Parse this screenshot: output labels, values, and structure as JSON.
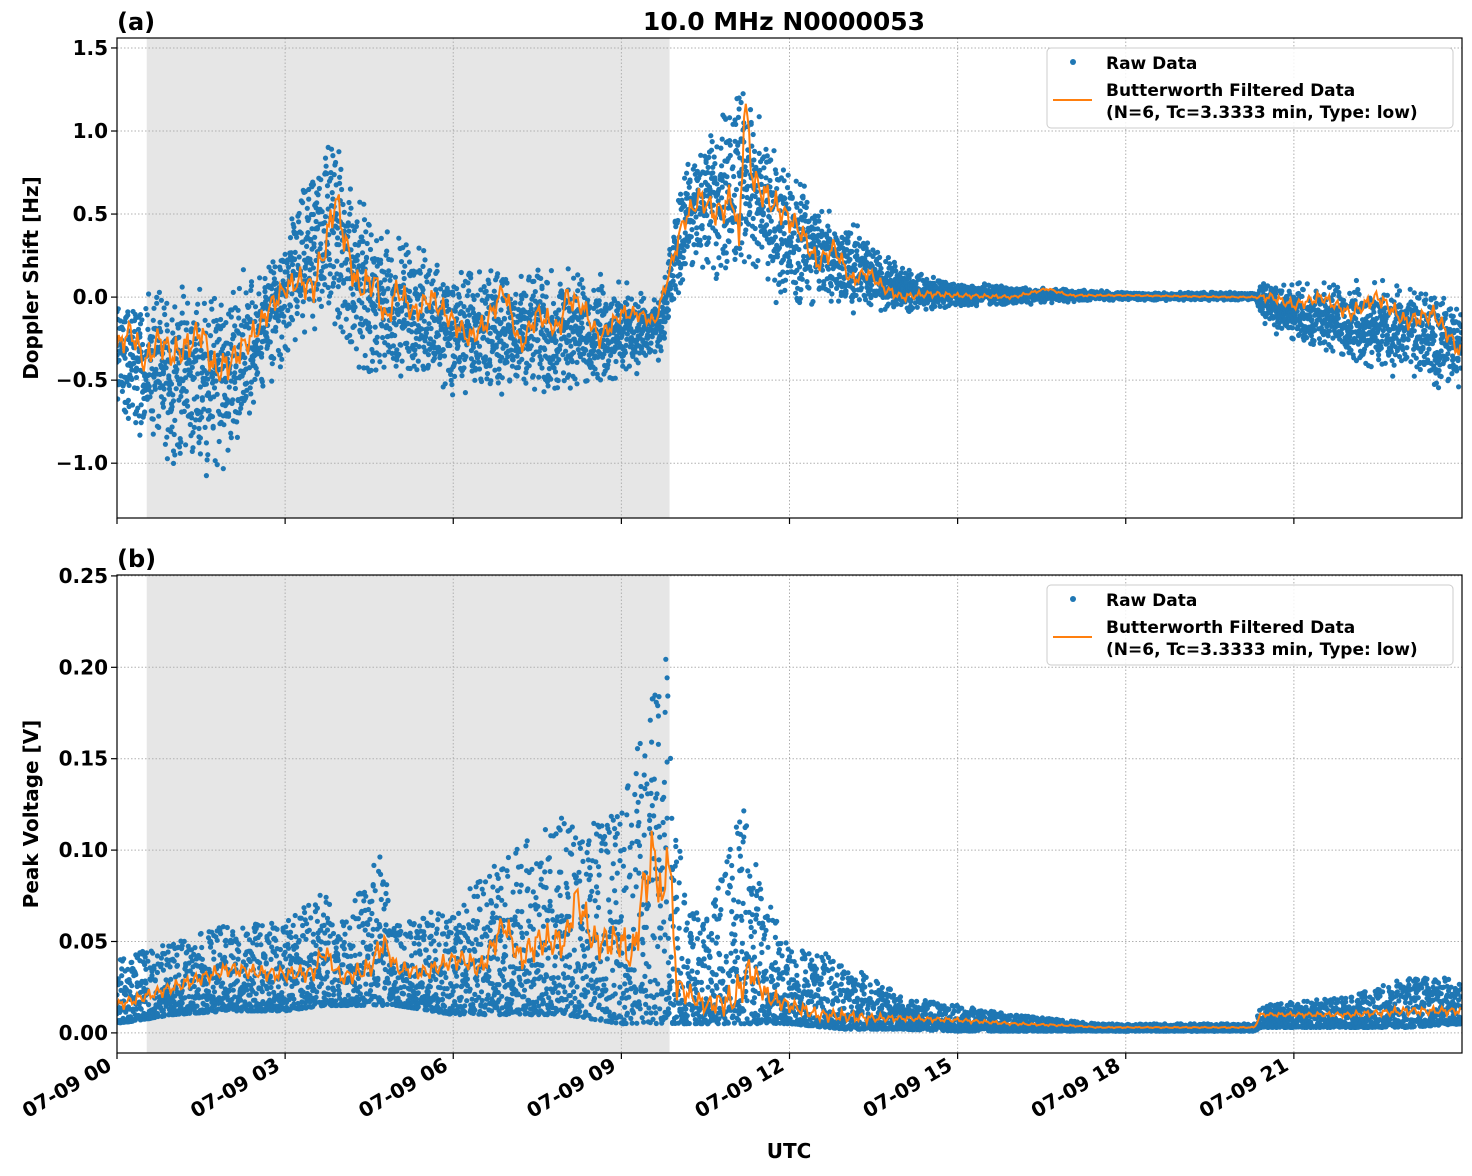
{
  "title": "10.0 MHz N0000053",
  "xlabel": "UTC",
  "x_tick_labels": [
    "07-09 00",
    "07-09 03",
    "07-09 06",
    "07-09 09",
    "07-09 12",
    "07-09 15",
    "07-09 18",
    "07-09 21"
  ],
  "colors": {
    "raw": "#1f77b4",
    "filtered": "#ff7f0e",
    "shade": "#e6e6e6"
  },
  "legend": {
    "raw": "Raw Data",
    "filtered_line1": "Butterworth Filtered Data",
    "filtered_line2": "(N=6, Tc=3.3333 min, Type: low)",
    "placement": "upper right"
  },
  "chart_data": [
    {
      "type": "scatter+line",
      "panel_label": "(a)",
      "ylabel": "Doppler Shift [Hz]",
      "xlim_hours_utc": [
        0,
        24
      ],
      "ylim": [
        -1.33,
        1.56
      ],
      "y_ticks": [
        -1.0,
        -0.5,
        0.0,
        0.5,
        1.0,
        1.5
      ],
      "y_tick_labels": [
        "−1.0",
        "−0.5",
        "0.0",
        "0.5",
        "1.0",
        "1.5"
      ],
      "grid": true,
      "shaded_interval_hours": [
        0.53,
        9.86
      ],
      "filtered": [
        [
          0,
          -0.3
        ],
        [
          0.25,
          -0.2
        ],
        [
          0.5,
          -0.4
        ],
        [
          0.75,
          -0.25
        ],
        [
          1,
          -0.35
        ],
        [
          1.25,
          -0.3
        ],
        [
          1.5,
          -0.2
        ],
        [
          1.75,
          -0.45
        ],
        [
          2,
          -0.4
        ],
        [
          2.25,
          -0.3
        ],
        [
          2.5,
          -0.2
        ],
        [
          2.75,
          -0.05
        ],
        [
          3,
          0.05
        ],
        [
          3.25,
          0.1
        ],
        [
          3.5,
          0.05
        ],
        [
          3.75,
          0.35
        ],
        [
          3.9,
          0.6
        ],
        [
          4.1,
          0.3
        ],
        [
          4.3,
          0.05
        ],
        [
          4.6,
          0.1
        ],
        [
          4.8,
          -0.15
        ],
        [
          5,
          0.05
        ],
        [
          5.3,
          -0.1
        ],
        [
          5.6,
          0.0
        ],
        [
          6,
          -0.15
        ],
        [
          6.3,
          -0.25
        ],
        [
          6.6,
          -0.15
        ],
        [
          6.9,
          0.05
        ],
        [
          7.2,
          -0.3
        ],
        [
          7.5,
          -0.1
        ],
        [
          7.9,
          -0.2
        ],
        [
          8,
          0.0
        ],
        [
          8.3,
          -0.05
        ],
        [
          8.6,
          -0.25
        ],
        [
          9,
          -0.1
        ],
        [
          9.3,
          -0.1
        ],
        [
          9.6,
          -0.15
        ],
        [
          9.9,
          0.2
        ],
        [
          10.1,
          0.45
        ],
        [
          10.4,
          0.6
        ],
        [
          10.7,
          0.5
        ],
        [
          11,
          0.6
        ],
        [
          11.1,
          0.3
        ],
        [
          11.2,
          1.2
        ],
        [
          11.35,
          0.7
        ],
        [
          11.6,
          0.6
        ],
        [
          11.9,
          0.5
        ],
        [
          12.2,
          0.4
        ],
        [
          12.5,
          0.2
        ],
        [
          12.8,
          0.3
        ],
        [
          13.1,
          0.1
        ],
        [
          13.4,
          0.15
        ],
        [
          13.7,
          0.05
        ],
        [
          14,
          0.0
        ],
        [
          14.5,
          0.02
        ],
        [
          15,
          0.01
        ],
        [
          16,
          0.0
        ],
        [
          16.6,
          0.05
        ],
        [
          17,
          0.01
        ],
        [
          18,
          0.01
        ],
        [
          20,
          0.0
        ],
        [
          20.6,
          0.0
        ],
        [
          21,
          -0.05
        ],
        [
          21.5,
          0.0
        ],
        [
          22,
          -0.1
        ],
        [
          22.5,
          0.0
        ],
        [
          23,
          -0.15
        ],
        [
          23.5,
          -0.1
        ],
        [
          24,
          -0.35
        ]
      ],
      "raw_envelope": [
        [
          0,
          -0.8,
          0.05
        ],
        [
          1,
          -1.0,
          0.1
        ],
        [
          1.8,
          -1.1,
          0.1
        ],
        [
          2.5,
          -0.7,
          0.2
        ],
        [
          3,
          -0.4,
          0.4
        ],
        [
          3.8,
          -0.2,
          1.1
        ],
        [
          4.5,
          -0.6,
          0.5
        ],
        [
          5,
          -0.5,
          0.4
        ],
        [
          6,
          -0.6,
          0.2
        ],
        [
          7,
          -0.6,
          0.2
        ],
        [
          8,
          -0.6,
          0.2
        ],
        [
          9,
          -0.5,
          0.1
        ],
        [
          9.7,
          -0.4,
          0.0
        ],
        [
          10.1,
          0.1,
          0.8
        ],
        [
          11.1,
          0.1,
          1.35
        ],
        [
          12,
          -0.1,
          0.8
        ],
        [
          13,
          -0.1,
          0.5
        ],
        [
          14,
          -0.1,
          0.2
        ],
        [
          15,
          -0.06,
          0.1
        ],
        [
          16,
          -0.05,
          0.07
        ],
        [
          17,
          -0.03,
          0.05
        ],
        [
          18,
          -0.02,
          0.03
        ],
        [
          20.3,
          -0.02,
          0.03
        ],
        [
          20.5,
          -0.2,
          0.1
        ],
        [
          22,
          -0.4,
          0.1
        ],
        [
          23,
          -0.5,
          0.1
        ],
        [
          24,
          -0.6,
          0.0
        ]
      ]
    },
    {
      "type": "scatter+line",
      "panel_label": "(b)",
      "ylabel": "Peak Voltage [V]",
      "xlim_hours_utc": [
        0,
        24
      ],
      "ylim": [
        -0.011,
        0.2505
      ],
      "y_ticks": [
        0.0,
        0.05,
        0.1,
        0.15,
        0.2,
        0.25
      ],
      "y_tick_labels": [
        "0.00",
        "0.05",
        "0.10",
        "0.15",
        "0.20",
        "0.25"
      ],
      "grid": true,
      "shaded_interval_hours": [
        0.53,
        9.86
      ],
      "filtered": [
        [
          0,
          0.015
        ],
        [
          0.5,
          0.02
        ],
        [
          1,
          0.025
        ],
        [
          1.5,
          0.03
        ],
        [
          2,
          0.035
        ],
        [
          2.5,
          0.033
        ],
        [
          3,
          0.032
        ],
        [
          3.5,
          0.033
        ],
        [
          3.7,
          0.045
        ],
        [
          4,
          0.03
        ],
        [
          4.5,
          0.035
        ],
        [
          4.75,
          0.05
        ],
        [
          5,
          0.035
        ],
        [
          5.5,
          0.033
        ],
        [
          6,
          0.04
        ],
        [
          6.2,
          0.04
        ],
        [
          6.5,
          0.035
        ],
        [
          6.9,
          0.06
        ],
        [
          7.2,
          0.04
        ],
        [
          7.5,
          0.05
        ],
        [
          8,
          0.05
        ],
        [
          8.2,
          0.075
        ],
        [
          8.5,
          0.05
        ],
        [
          9,
          0.05
        ],
        [
          9.2,
          0.04
        ],
        [
          9.4,
          0.08
        ],
        [
          9.6,
          0.1
        ],
        [
          9.75,
          0.06
        ],
        [
          9.8,
          0.115
        ],
        [
          10,
          0.025
        ],
        [
          10.5,
          0.015
        ],
        [
          11,
          0.018
        ],
        [
          11.3,
          0.035
        ],
        [
          11.6,
          0.02
        ],
        [
          12,
          0.015
        ],
        [
          12.5,
          0.01
        ],
        [
          13.5,
          0.008
        ],
        [
          14,
          0.008
        ],
        [
          15,
          0.007
        ],
        [
          16,
          0.005
        ],
        [
          17,
          0.004
        ],
        [
          17.5,
          0.003
        ],
        [
          20.3,
          0.003
        ],
        [
          20.4,
          0.01
        ],
        [
          21,
          0.01
        ],
        [
          22,
          0.01
        ],
        [
          23,
          0.012
        ],
        [
          24,
          0.012
        ]
      ],
      "raw_envelope": [
        [
          0,
          0.005,
          0.04
        ],
        [
          1,
          0.01,
          0.05
        ],
        [
          2,
          0.012,
          0.06
        ],
        [
          3,
          0.012,
          0.06
        ],
        [
          3.7,
          0.015,
          0.08
        ],
        [
          4,
          0.015,
          0.06
        ],
        [
          4.7,
          0.015,
          0.1
        ],
        [
          5,
          0.015,
          0.06
        ],
        [
          6,
          0.01,
          0.07
        ],
        [
          7,
          0.01,
          0.1
        ],
        [
          8,
          0.01,
          0.12
        ],
        [
          9,
          0.005,
          0.12
        ],
        [
          9.6,
          0.005,
          0.2
        ],
        [
          9.8,
          0.005,
          0.23
        ],
        [
          10.1,
          0.005,
          0.08
        ],
        [
          10.5,
          0.005,
          0.06
        ],
        [
          11.2,
          0.005,
          0.13
        ],
        [
          11.5,
          0.005,
          0.08
        ],
        [
          12,
          0.005,
          0.05
        ],
        [
          13,
          0.002,
          0.04
        ],
        [
          14,
          0.002,
          0.02
        ],
        [
          15,
          0.001,
          0.015
        ],
        [
          16,
          0.001,
          0.01
        ],
        [
          17.5,
          0.001,
          0.005
        ],
        [
          20.3,
          0.001,
          0.005
        ],
        [
          20.4,
          0.003,
          0.015
        ],
        [
          22,
          0.003,
          0.02
        ],
        [
          23,
          0.003,
          0.03
        ],
        [
          24,
          0.005,
          0.03
        ]
      ]
    }
  ]
}
